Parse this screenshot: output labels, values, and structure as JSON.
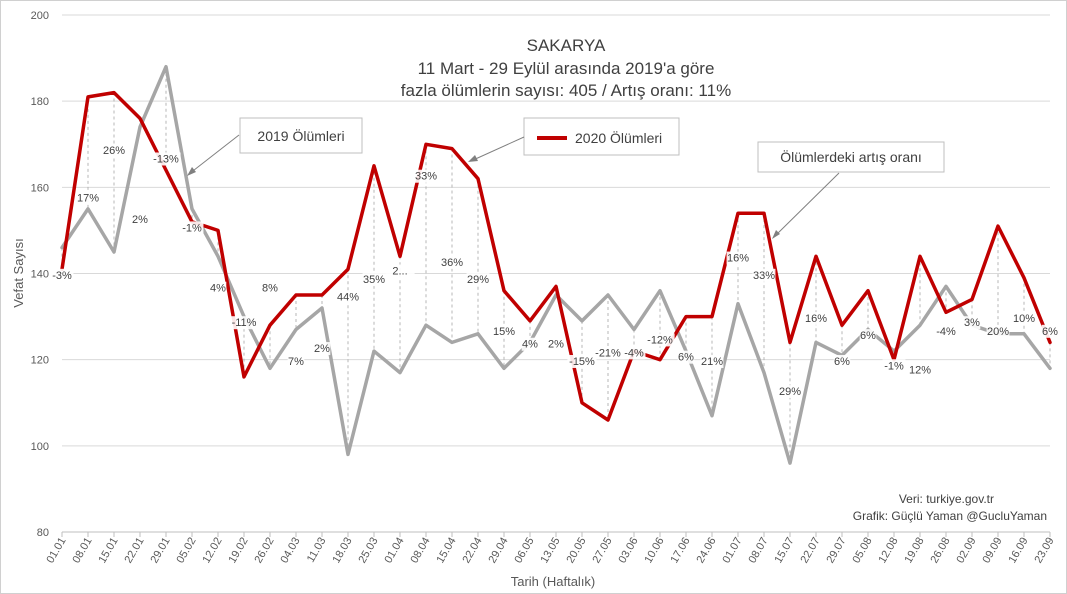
{
  "chart_data": {
    "type": "line",
    "title": [
      "SAKARYA",
      "11 Mart - 29 Eylül arasında 2019'a göre",
      "fazla ölümlerin sayısı: 405 / Artış oranı: 11%"
    ],
    "xlabel": "Tarih (Haftalık)",
    "ylabel": "Vefat Sayısı",
    "ylim": [
      80,
      200
    ],
    "yticks": [
      80,
      100,
      120,
      140,
      160,
      180,
      200
    ],
    "grid": true,
    "categories": [
      "01.01",
      "08.01",
      "15.01",
      "22.01",
      "29.01",
      "05.02",
      "12.02",
      "19.02",
      "26.02",
      "04.03",
      "11.03",
      "18.03",
      "25.03",
      "01.04",
      "08.04",
      "15.04",
      "22.04",
      "29.04",
      "06.05",
      "13.05",
      "20.05",
      "27.05",
      "03.06",
      "10.06",
      "17.06",
      "24.06",
      "01.07",
      "08.07",
      "15.07",
      "22.07",
      "29.07",
      "05.08",
      "12.08",
      "19.08",
      "26.08",
      "02.09",
      "09.09",
      "16.09",
      "23.09"
    ],
    "series": [
      {
        "name": "2020 Ölümleri",
        "color": "#c00000",
        "values": [
          141,
          181,
          182,
          176,
          164,
          152,
          150,
          116,
          128,
          135,
          135,
          141,
          165,
          144,
          170,
          169,
          162,
          136,
          129,
          137,
          110,
          106,
          122,
          120,
          130,
          130,
          154,
          154,
          124,
          144,
          128,
          136,
          120,
          144,
          131,
          134,
          151,
          139,
          124
        ]
      },
      {
        "name": "2019 Ölümleri",
        "color": "#a6a6a6",
        "values": [
          146,
          155,
          145,
          174,
          188,
          155,
          144,
          130,
          118,
          127,
          132,
          98,
          122,
          117,
          128,
          124,
          126,
          118,
          124,
          135,
          129,
          135,
          127,
          136,
          122,
          107,
          133,
          117,
          96,
          124,
          121,
          127,
          122,
          128,
          137,
          128,
          126,
          126,
          118
        ]
      }
    ],
    "pct_labels": [
      "-3%",
      "17%",
      "26%",
      "2%",
      "-13%",
      "-1%",
      "4%",
      "-11%",
      "8%",
      "7%",
      "2%",
      "44%",
      "35%",
      "2...",
      "33%",
      "36%",
      "29%",
      "15%",
      "4%",
      "2%",
      "-15%",
      "-21%",
      "-4%",
      "-12%",
      "6%",
      "21%",
      "16%",
      "33%",
      "29%",
      "16%",
      "6%",
      "6%",
      "-1%",
      "12%",
      "-4%",
      "3%",
      "20%",
      "10%",
      "6%"
    ],
    "pct_label_y": [
      139,
      157,
      168,
      152,
      166,
      150,
      136,
      128,
      136,
      119,
      122,
      134,
      138,
      140,
      162,
      142,
      138,
      126,
      123,
      123,
      119,
      121,
      121,
      124,
      120,
      119,
      143,
      139,
      112,
      129,
      119,
      125,
      118,
      117,
      126,
      128,
      126,
      129,
      126
    ],
    "annotations": [
      {
        "text": "2019 Ölümleri"
      },
      {
        "text": "2020 Ölümleri"
      },
      {
        "text": "Ölümlerdeki artış oranı"
      }
    ],
    "credits": [
      "Veri: turkiye.gov.tr",
      "Grafik: Güçlü Yaman @GucluYaman"
    ]
  }
}
